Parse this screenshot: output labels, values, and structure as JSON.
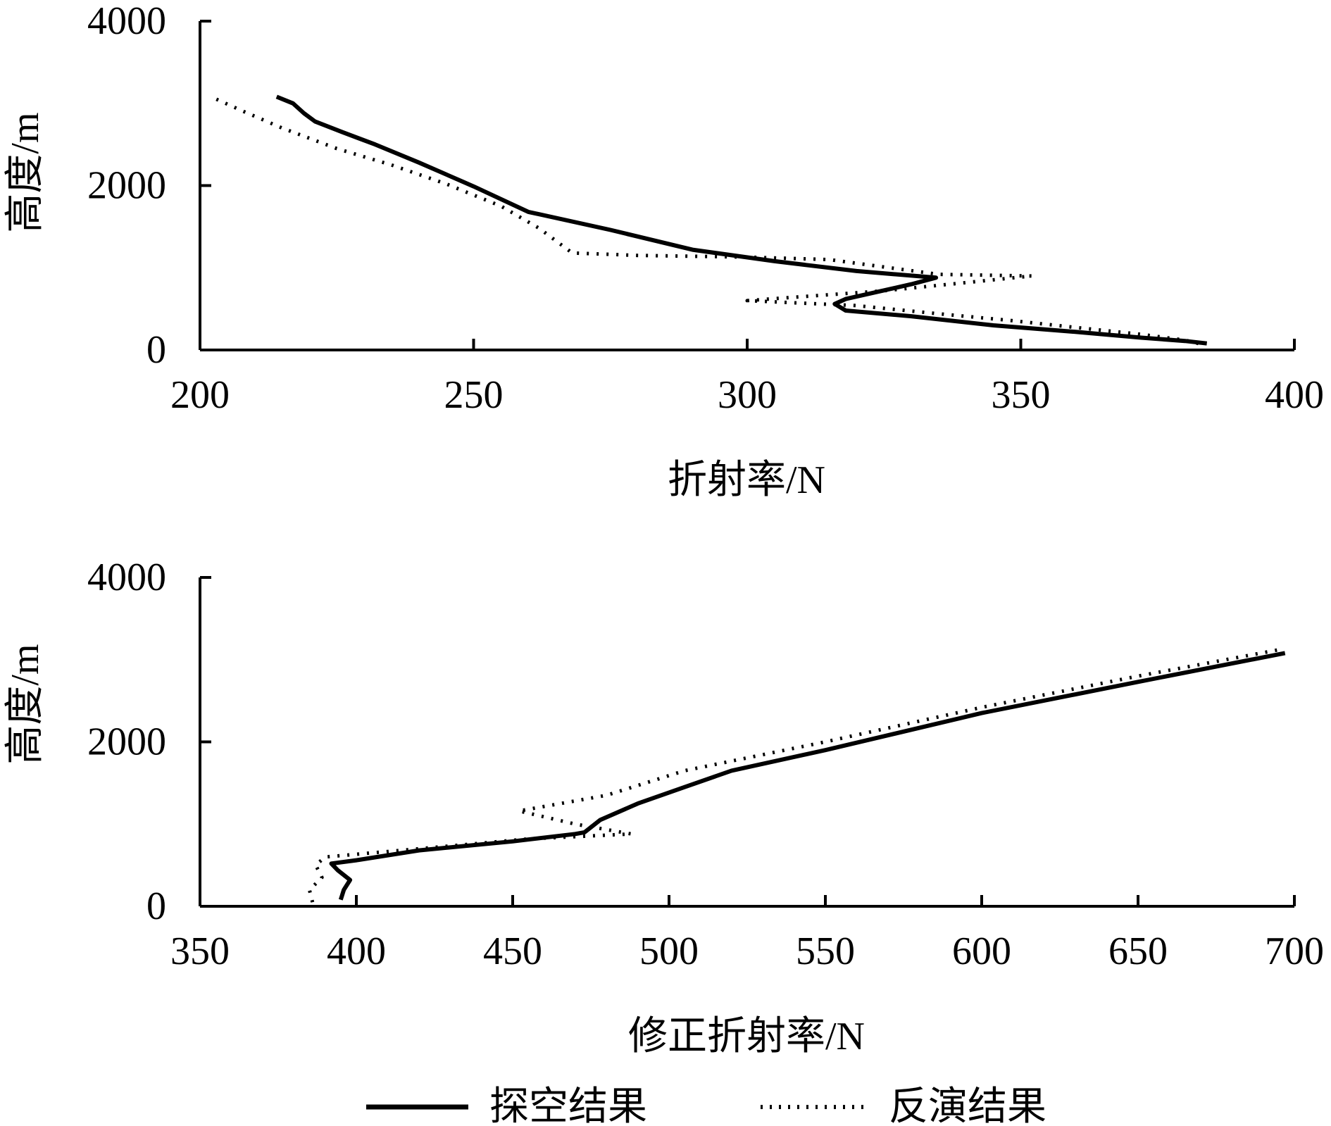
{
  "chart_data": [
    {
      "type": "line",
      "xlabel": "折射率/N",
      "ylabel": "高度/m",
      "xlim": [
        200,
        400
      ],
      "ylim": [
        0,
        4000
      ],
      "xticks": [
        200,
        250,
        300,
        350,
        400
      ],
      "yticks": [
        0,
        2000,
        4000
      ],
      "grid": false,
      "series": [
        {
          "name": "探空结果",
          "style": "solid",
          "points": [
            [
              214,
              3080
            ],
            [
              217,
              3000
            ],
            [
              219,
              2880
            ],
            [
              221,
              2780
            ],
            [
              226,
              2650
            ],
            [
              232,
              2500
            ],
            [
              240,
              2280
            ],
            [
              250,
              1990
            ],
            [
              260,
              1680
            ],
            [
              275,
              1460
            ],
            [
              290,
              1220
            ],
            [
              305,
              1080
            ],
            [
              320,
              960
            ],
            [
              334.5,
              880
            ],
            [
              330,
              800
            ],
            [
              318,
              620
            ],
            [
              316,
              560
            ],
            [
              318,
              480
            ],
            [
              330,
              410
            ],
            [
              345,
              300
            ],
            [
              360,
              220
            ],
            [
              372,
              150
            ],
            [
              380,
              110
            ],
            [
              384,
              80
            ]
          ]
        },
        {
          "name": "反演结果",
          "style": "dotted",
          "points": [
            [
              203,
              3050
            ],
            [
              208,
              2900
            ],
            [
              215,
              2700
            ],
            [
              225,
              2450
            ],
            [
              235,
              2250
            ],
            [
              245,
              2020
            ],
            [
              255,
              1750
            ],
            [
              262,
              1480
            ],
            [
              268,
              1180
            ],
            [
              280,
              1150
            ],
            [
              300,
              1130
            ],
            [
              315,
              1100
            ],
            [
              335,
              920
            ],
            [
              352,
              900
            ],
            [
              340,
              820
            ],
            [
              325,
              720
            ],
            [
              300,
              600
            ],
            [
              320,
              540
            ],
            [
              335,
              440
            ],
            [
              348,
              360
            ],
            [
              362,
              260
            ],
            [
              372,
              190
            ],
            [
              380,
              120
            ],
            [
              383,
              70
            ]
          ]
        }
      ]
    },
    {
      "type": "line",
      "xlabel": "修正折射率/N",
      "ylabel": "高度/m",
      "xlim": [
        350,
        700
      ],
      "ylim": [
        0,
        4000
      ],
      "xticks": [
        350,
        400,
        450,
        500,
        550,
        600,
        650,
        700
      ],
      "yticks": [
        0,
        2000,
        4000
      ],
      "grid": false,
      "series": [
        {
          "name": "探空结果",
          "style": "solid",
          "points": [
            [
              395,
              80
            ],
            [
              396,
              200
            ],
            [
              398,
              320
            ],
            [
              394,
              440
            ],
            [
              392,
              520
            ],
            [
              400,
              560
            ],
            [
              420,
              680
            ],
            [
              450,
              790
            ],
            [
              470,
              880
            ],
            [
              473,
              900
            ],
            [
              478,
              1050
            ],
            [
              490,
              1250
            ],
            [
              505,
              1450
            ],
            [
              520,
              1650
            ],
            [
              550,
              1900
            ],
            [
              600,
              2350
            ],
            [
              650,
              2730
            ],
            [
              697,
              3080
            ]
          ]
        },
        {
          "name": "反演结果",
          "style": "dotted",
          "points": [
            [
              386,
              50
            ],
            [
              385,
              200
            ],
            [
              389,
              350
            ],
            [
              387,
              500
            ],
            [
              390,
              600
            ],
            [
              420,
              700
            ],
            [
              455,
              820
            ],
            [
              488,
              880
            ],
            [
              470,
              1000
            ],
            [
              452,
              1160
            ],
            [
              480,
              1350
            ],
            [
              505,
              1650
            ],
            [
              550,
              2000
            ],
            [
              600,
              2420
            ],
            [
              650,
              2800
            ],
            [
              695,
              3120
            ]
          ]
        }
      ]
    }
  ],
  "legend": {
    "placement": "bottom",
    "items": [
      {
        "label": "探空结果",
        "style": "solid"
      },
      {
        "label": "反演结果",
        "style": "dotted"
      }
    ]
  }
}
